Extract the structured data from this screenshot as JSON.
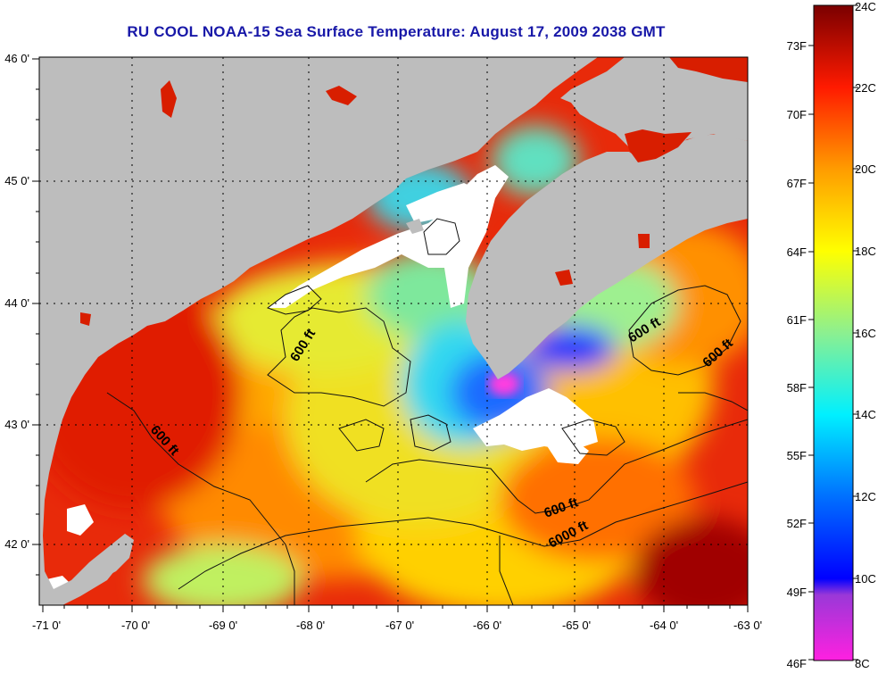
{
  "title": "RU COOL  NOAA-15  Sea Surface Temperature:  August 17, 2009 2038 GMT",
  "colors": {
    "title": "#1818a8",
    "land": "#bdbdbd",
    "cloud": "#ffffff",
    "frame": "#000000"
  },
  "map": {
    "lon_ticks": [
      "-71 0'",
      "-70 0'",
      "-69 0'",
      "-68 0'",
      "-67 0'",
      "-66 0'",
      "-65 0'",
      "-64 0'",
      "-63 0'"
    ],
    "lat_ticks": [
      "46 0'",
      "45 0'",
      "44 0'",
      "43 0'",
      "42 0'"
    ],
    "contour_labels": [
      "600 ft",
      "600 ft",
      "600 ft",
      "600 ft",
      "600 ft",
      "6000 ft"
    ]
  },
  "colorbar": {
    "fahrenheit_labels": [
      "73F",
      "70F",
      "67F",
      "64F",
      "61F",
      "58F",
      "55F",
      "52F",
      "49F",
      "46F"
    ],
    "celsius_labels": [
      "24C",
      "22C",
      "20C",
      "18C",
      "16C",
      "14C",
      "12C",
      "10C",
      "8C"
    ]
  }
}
